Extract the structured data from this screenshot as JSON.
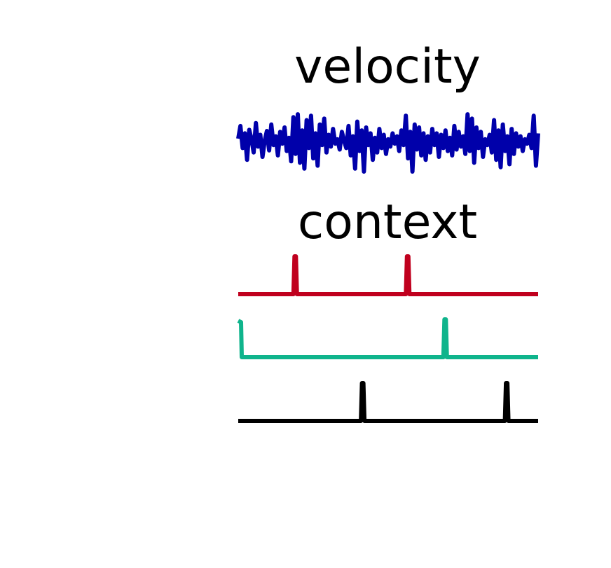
{
  "chart_data": [
    {
      "type": "line",
      "title": "velocity",
      "x_range": [
        0,
        1
      ],
      "ylim": [
        -1,
        1
      ],
      "series": [
        {
          "color": "#0000aa",
          "values": [
            0.12,
            0.55,
            -0.2,
            0.3,
            -0.6,
            0.42,
            0.1,
            -0.35,
            0.65,
            -0.15,
            0.25,
            -0.5,
            0.05,
            0.38,
            -0.28,
            0.6,
            -0.1,
            0.2,
            -0.45,
            0.35,
            -0.05,
            0.5,
            -0.3,
            0.15,
            -0.65,
            0.85,
            -0.4,
            0.95,
            -0.7,
            0.4,
            -0.9,
            0.75,
            -0.2,
            0.9,
            -0.55,
            0.3,
            -0.8,
            0.6,
            -0.1,
            0.8,
            -0.35,
            0.25,
            -0.15,
            0.45,
            -0.05,
            0.1,
            -0.25,
            0.35,
            0.05,
            -0.2,
            0.55,
            -0.45,
            0.2,
            -0.9,
            0.7,
            -0.3,
            0.4,
            -1.0,
            0.5,
            -0.1,
            0.3,
            -0.6,
            0.15,
            -0.35,
            0.45,
            -0.2,
            0.25,
            -0.4,
            0.1,
            -0.15,
            0.3,
            -0.05,
            0.2,
            -0.3,
            0.4,
            -0.1,
            0.9,
            -0.55,
            0.35,
            -1.0,
            0.6,
            -0.25,
            0.5,
            -0.45,
            0.3,
            -0.6,
            0.2,
            -0.35,
            0.45,
            -0.1,
            0.3,
            -0.5,
            0.25,
            -0.2,
            0.4,
            -0.3,
            0.15,
            -0.45,
            0.55,
            -0.25,
            0.35,
            -0.15,
            0.2,
            -0.4,
            0.95,
            -0.3,
            0.8,
            -0.7,
            0.5,
            -0.2,
            0.35,
            -0.5,
            0.1,
            -0.1,
            0.25,
            -0.35,
            0.75,
            -0.6,
            0.4,
            -0.85,
            0.6,
            -0.3,
            0.2,
            -0.75,
            0.45,
            -0.4,
            0.3,
            -0.15,
            0.2,
            -0.3,
            0.1,
            -0.05,
            0.25,
            -0.2,
            0.9,
            -0.8,
            0.3
          ]
        }
      ]
    },
    {
      "type": "line",
      "title": "context",
      "x_range": [
        0,
        1
      ],
      "series": [
        {
          "color": "#c0001e",
          "pulses": [
            0.19,
            0.565
          ]
        },
        {
          "color": "#0fb48c",
          "pulses": [
            0.0,
            0.69
          ],
          "baseline_offset_for_start": true
        },
        {
          "color": "#000000",
          "pulses": [
            0.415,
            0.895
          ]
        }
      ]
    }
  ]
}
